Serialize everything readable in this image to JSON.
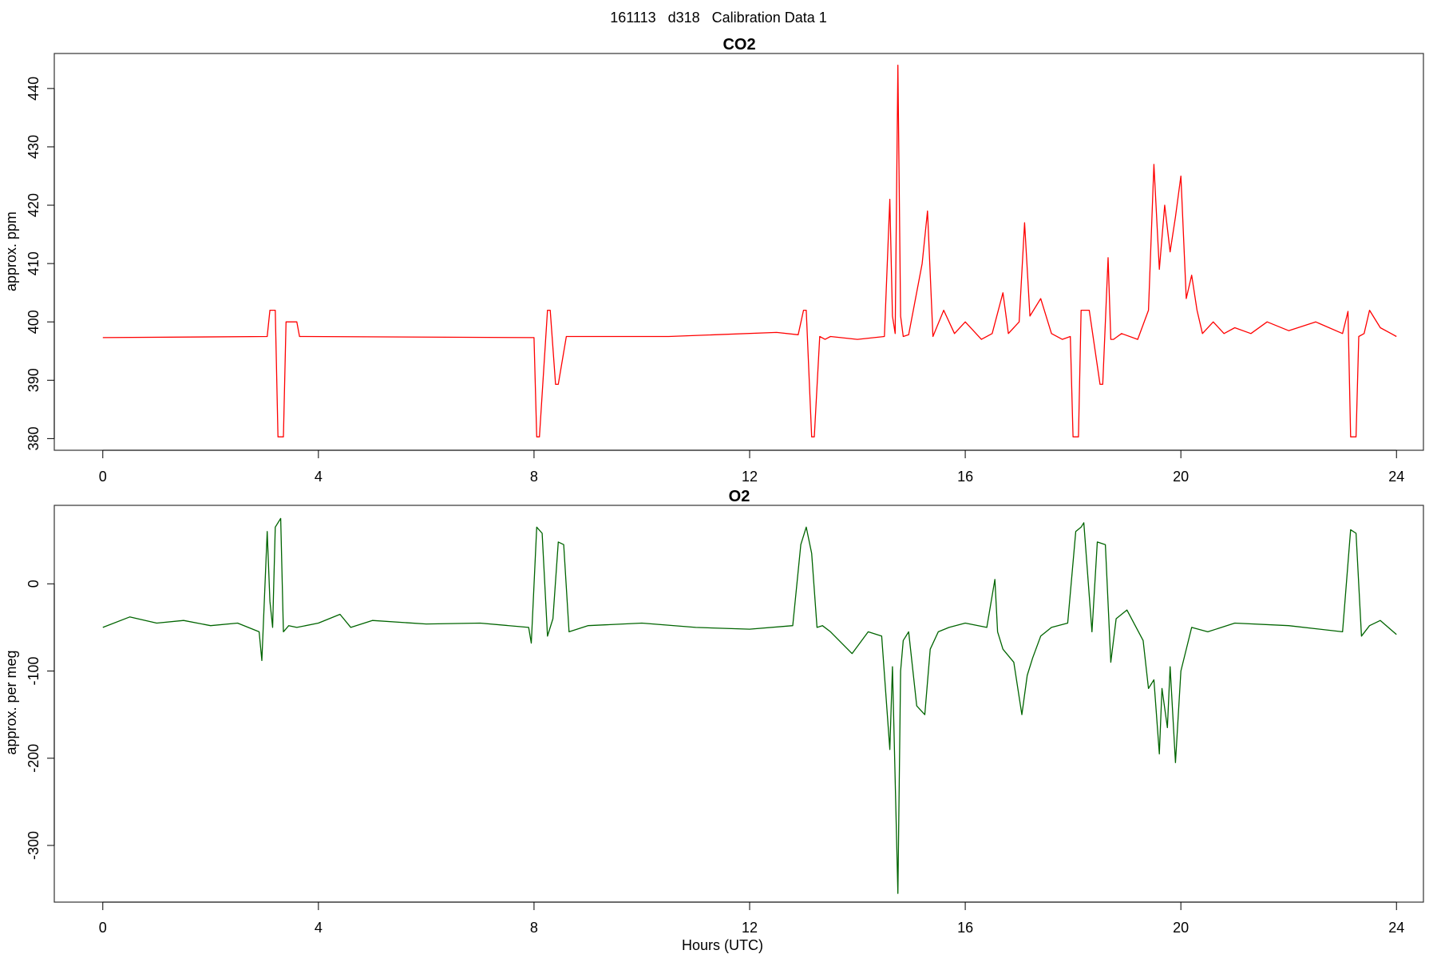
{
  "figure": {
    "title": "161113   d318   Calibration Data 1"
  },
  "chart_data": [
    {
      "type": "line",
      "title": "CO2",
      "xlabel": "",
      "ylabel": "approx. ppm",
      "xlim": [
        -0.9,
        24.5
      ],
      "ylim": [
        378.0,
        446.0
      ],
      "xticks": [
        0,
        4,
        8,
        12,
        16,
        20,
        24
      ],
      "yticks": [
        380,
        390,
        400,
        410,
        420,
        430,
        440
      ],
      "color": "#ff0000",
      "series": [
        {
          "x": [
            0,
            3.05,
            3.1,
            3.2,
            3.25,
            3.35,
            3.4,
            3.45,
            3.6,
            3.65,
            8.0,
            8.05,
            8.1,
            8.25,
            8.3,
            8.4,
            8.45,
            8.6,
            8.65,
            10.5,
            12.5,
            12.9,
            13.0,
            13.05,
            13.15,
            13.2,
            13.3,
            13.4,
            13.5,
            14.0,
            14.5,
            14.6,
            14.65,
            14.7,
            14.75,
            14.8,
            14.85,
            14.95,
            15.2,
            15.3,
            15.4,
            15.6,
            15.8,
            16.0,
            16.3,
            16.5,
            16.7,
            16.8,
            17.0,
            17.1,
            17.2,
            17.4,
            17.6,
            17.8,
            17.95,
            18.0,
            18.1,
            18.15,
            18.3,
            18.5,
            18.55,
            18.65,
            18.7,
            18.75,
            18.9,
            19.2,
            19.4,
            19.5,
            19.6,
            19.7,
            19.8,
            19.9,
            20.0,
            20.1,
            20.2,
            20.3,
            20.4,
            20.6,
            20.8,
            21.0,
            21.3,
            21.6,
            22.0,
            22.5,
            23.0,
            23.1,
            23.15,
            23.25,
            23.3,
            23.4,
            23.5,
            23.7,
            23.9,
            24.0
          ],
          "y": [
            397.3,
            397.5,
            402,
            402,
            380.3,
            380.3,
            400,
            400,
            400,
            397.5,
            397.3,
            380.3,
            380.3,
            402,
            402,
            389.3,
            389.3,
            397.5,
            397.5,
            397.5,
            398.2,
            397.8,
            402,
            402,
            380.3,
            380.3,
            397.5,
            397,
            397.5,
            397,
            397.5,
            421,
            401,
            398,
            444,
            401,
            397.5,
            397.8,
            410,
            419,
            397.5,
            402,
            398,
            400,
            397,
            398,
            405,
            398,
            400,
            417,
            401,
            404,
            398,
            397,
            397.5,
            380.3,
            380.3,
            402,
            402,
            389.3,
            389.3,
            411,
            397,
            397,
            398,
            397,
            402,
            427,
            409,
            420,
            412,
            418,
            425,
            404,
            408,
            402,
            398,
            400,
            398,
            399,
            398,
            400,
            398.5,
            400,
            398,
            401.8,
            380.3,
            380.3,
            397.5,
            398,
            402,
            399,
            398,
            397.5
          ]
        }
      ]
    },
    {
      "type": "line",
      "title": "O2",
      "xlabel": "Hours (UTC)",
      "ylabel": "approx. per meg",
      "xlim": [
        -0.9,
        24.5
      ],
      "ylim": [
        -365,
        90
      ],
      "xticks": [
        0,
        4,
        8,
        12,
        16,
        20,
        24
      ],
      "yticks": [
        -300,
        -200,
        -100,
        0
      ],
      "color": "#006400",
      "series": [
        {
          "x": [
            0,
            0.5,
            1,
            1.5,
            2,
            2.5,
            2.9,
            2.95,
            3.05,
            3.1,
            3.15,
            3.2,
            3.3,
            3.35,
            3.45,
            3.6,
            4.0,
            4.4,
            4.6,
            5,
            6,
            7,
            7.9,
            7.95,
            8.05,
            8.15,
            8.25,
            8.35,
            8.45,
            8.55,
            8.65,
            9,
            10,
            11,
            12,
            12.8,
            12.95,
            13.05,
            13.15,
            13.25,
            13.35,
            13.5,
            13.9,
            14.2,
            14.45,
            14.6,
            14.65,
            14.75,
            14.8,
            14.85,
            14.95,
            15.1,
            15.25,
            15.35,
            15.5,
            15.7,
            16.0,
            16.4,
            16.55,
            16.6,
            16.7,
            16.9,
            17.05,
            17.15,
            17.25,
            17.4,
            17.6,
            17.9,
            18.05,
            18.15,
            18.2,
            18.35,
            18.45,
            18.6,
            18.7,
            18.8,
            19.0,
            19.3,
            19.4,
            19.5,
            19.6,
            19.65,
            19.75,
            19.8,
            19.9,
            20.0,
            20.2,
            20.5,
            21,
            22,
            23.0,
            23.15,
            23.25,
            23.35,
            23.5,
            23.7,
            24.0
          ],
          "y": [
            -50,
            -38,
            -45,
            -42,
            -48,
            -45,
            -55,
            -88,
            60,
            -20,
            -50,
            65,
            75,
            -55,
            -48,
            -50,
            -45,
            -35,
            -50,
            -42,
            -46,
            -45,
            -50,
            -68,
            65,
            58,
            -60,
            -40,
            48,
            45,
            -55,
            -48,
            -45,
            -50,
            -52,
            -48,
            45,
            65,
            35,
            -50,
            -48,
            -55,
            -80,
            -55,
            -60,
            -190,
            -95,
            -355,
            -100,
            -65,
            -55,
            -140,
            -150,
            -75,
            -55,
            -50,
            -45,
            -50,
            5,
            -55,
            -75,
            -90,
            -150,
            -105,
            -85,
            -60,
            -50,
            -45,
            60,
            65,
            70,
            -55,
            48,
            45,
            -90,
            -40,
            -30,
            -65,
            -120,
            -110,
            -195,
            -120,
            -165,
            -95,
            -205,
            -100,
            -50,
            -55,
            -45,
            -48,
            -55,
            62,
            58,
            -60,
            -48,
            -42,
            -58
          ]
        }
      ]
    }
  ]
}
